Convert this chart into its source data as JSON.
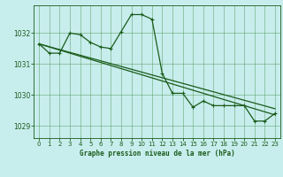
{
  "title": "Graphe pression niveau de la mer (hPa)",
  "background_color": "#c8eded",
  "grid_color": "#3d8b3d",
  "line_color": "#1a5c1a",
  "marker_color": "#1a5c1a",
  "xlim": [
    -0.5,
    23.5
  ],
  "ylim": [
    1028.6,
    1032.9
  ],
  "yticks": [
    1029,
    1030,
    1031,
    1032
  ],
  "xticks": [
    0,
    1,
    2,
    3,
    4,
    5,
    6,
    7,
    8,
    9,
    10,
    11,
    12,
    13,
    14,
    15,
    16,
    17,
    18,
    19,
    20,
    21,
    22,
    23
  ],
  "series1_x": [
    0,
    1,
    2,
    3,
    4,
    5,
    6,
    7,
    8,
    9,
    10,
    11,
    12,
    13,
    14,
    15,
    16,
    17,
    18,
    19,
    20,
    21,
    22,
    23
  ],
  "series1_y": [
    1031.65,
    1031.35,
    1031.35,
    1032.0,
    1031.95,
    1031.7,
    1031.55,
    1031.5,
    1032.05,
    1032.6,
    1032.6,
    1032.45,
    1030.7,
    1030.05,
    1030.05,
    1029.6,
    1029.8,
    1029.65,
    1029.65,
    1029.65,
    1029.65,
    1029.15,
    1029.15,
    1029.4
  ],
  "series2_x": [
    0,
    23
  ],
  "series2_y": [
    1031.65,
    1029.35
  ],
  "series3_x": [
    0,
    23
  ],
  "series3_y": [
    1031.65,
    1029.55
  ]
}
